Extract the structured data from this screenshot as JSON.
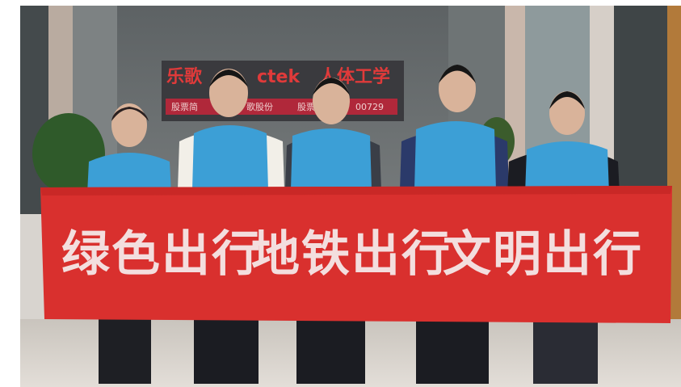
{
  "sign": {
    "brand_cn": "乐歌",
    "brand_en": "ctek",
    "slogan": "人体工学",
    "ticker_parts": [
      "股票简",
      "歌股份",
      "股票",
      "00729"
    ]
  },
  "banner": {
    "phrases": [
      "绿色出行",
      "地铁出行",
      "文明出行"
    ]
  }
}
